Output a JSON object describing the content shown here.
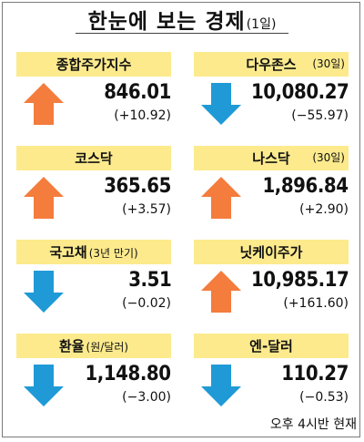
{
  "title": {
    "main": "한눈에 보는 경제",
    "sub": "(1일)"
  },
  "colors": {
    "header_bg": "#fcea8d",
    "up_arrow": "#f47c3c",
    "down_arrow": "#1f9ad6"
  },
  "items": [
    {
      "name": "종합주가지수",
      "note": "",
      "value": "846.01",
      "change": "(+10.92)",
      "direction": "up"
    },
    {
      "name": "다우존스",
      "note": "(30일)",
      "value": "10,080.27",
      "change": "(−55.97)",
      "direction": "down"
    },
    {
      "name": "코스닥",
      "note": "",
      "value": "365.65",
      "change": "(+3.57)",
      "direction": "up"
    },
    {
      "name": "나스닥",
      "note": "(30일)",
      "value": "1,896.84",
      "change": "(+2.90)",
      "direction": "up"
    },
    {
      "name": "국고채",
      "note": "(3년 만기)",
      "value": "3.51",
      "change": "(−0.02)",
      "direction": "down"
    },
    {
      "name": "닛케이주가",
      "note": "",
      "value": "10,985.17",
      "change": "(+161.60)",
      "direction": "up"
    },
    {
      "name": "환율",
      "note": "(원/달러)",
      "value": "1,148.80",
      "change": "(−3.00)",
      "direction": "down"
    },
    {
      "name": "엔-달러",
      "note": "",
      "value": "110.27",
      "change": "(−0.53)",
      "direction": "down"
    }
  ],
  "footnote": "오후 4시반  현재"
}
